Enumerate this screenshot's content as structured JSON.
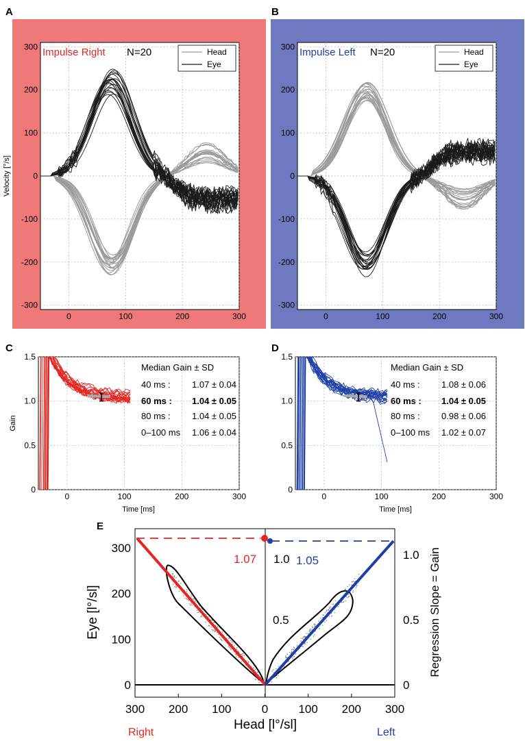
{
  "figure": {
    "panel_labels": [
      "A",
      "B",
      "C",
      "D",
      "E"
    ],
    "colors": {
      "right": "#e52521",
      "left": "#1f3fa8",
      "bgA": "#ef7878",
      "bgB": "#6f79bf",
      "head": "#9a9a9a",
      "eye": "#1a1a1a"
    }
  },
  "chart_data": [
    {
      "id": "A",
      "type": "line",
      "title": "Impulse Right",
      "count_label": "N=20",
      "ylabel": "Velocity [°/s]",
      "xlabel": "",
      "xlim": [
        -50,
        300
      ],
      "ylim": [
        -310,
        310
      ],
      "xticks": [
        0,
        100,
        200,
        300
      ],
      "yticks": [
        -300,
        -200,
        -100,
        0,
        100,
        200,
        300
      ],
      "grid": true,
      "legend": [
        "Head",
        "Eye"
      ],
      "legend_position": "top-right",
      "series": [
        {
          "name": "Head",
          "peak_velocity": -200,
          "peak_time_ms": 75,
          "trace_count": 20
        },
        {
          "name": "Eye",
          "peak_velocity": 210,
          "peak_time_ms": 75,
          "trace_count": 20
        }
      ]
    },
    {
      "id": "B",
      "type": "line",
      "title": "Impulse Left",
      "count_label": "N=20",
      "ylabel": "",
      "xlabel": "",
      "xlim": [
        -50,
        300
      ],
      "ylim": [
        -310,
        310
      ],
      "xticks": [
        0,
        100,
        200,
        300
      ],
      "yticks": [
        -300,
        -200,
        -100,
        0,
        100,
        200,
        300
      ],
      "grid": true,
      "legend": [
        "Head",
        "Eye"
      ],
      "legend_position": "top-right",
      "series": [
        {
          "name": "Head",
          "peak_velocity": 190,
          "peak_time_ms": 70,
          "trace_count": 20
        },
        {
          "name": "Eye",
          "peak_velocity": -195,
          "peak_time_ms": 70,
          "trace_count": 20
        }
      ]
    },
    {
      "id": "C",
      "type": "line",
      "ylabel": "Gain",
      "xlabel": "Time [ms]",
      "xlim": [
        -50,
        300
      ],
      "ylim": [
        0,
        1.5
      ],
      "xticks": [
        0,
        100,
        200,
        300
      ],
      "yticks": [
        0,
        0.5,
        1.0,
        1.5
      ],
      "grid": true,
      "table_header": "Median Gain ± SD",
      "rows": [
        {
          "label": "40 ms :",
          "value": "1.07 ± 0.04",
          "bold": false
        },
        {
          "label": "60 ms :",
          "value": "1.04 ± 0.05",
          "bold": true
        },
        {
          "label": "80 ms :",
          "value": "1.04 ± 0.05",
          "bold": false
        },
        {
          "label": "0–100 ms",
          "value": "1.06 ± 0.04",
          "bold": false
        }
      ]
    },
    {
      "id": "D",
      "type": "line",
      "ylabel": "",
      "xlabel": "Time [ms]",
      "xlim": [
        -50,
        300
      ],
      "ylim": [
        0,
        1.5
      ],
      "xticks": [
        0,
        100,
        200,
        300
      ],
      "yticks": [
        0,
        0.5,
        1.0,
        1.5
      ],
      "grid": true,
      "table_header": "Median Gain ± SD",
      "rows": [
        {
          "label": "40 ms :",
          "value": "1.08 ± 0.06",
          "bold": false
        },
        {
          "label": "60 ms :",
          "value": "1.04 ± 0.05",
          "bold": true
        },
        {
          "label": "80 ms :",
          "value": "0.98 ± 0.06",
          "bold": false
        },
        {
          "label": "0–100 ms",
          "value": "1.02 ± 0.07",
          "bold": false
        }
      ]
    },
    {
      "id": "E",
      "type": "scatter",
      "xlabel": "Head [l°/sl]",
      "ylabel": "Eye [l°/sl]",
      "ylabel_right": "Regression Slope = Gain",
      "xticks": [
        "300",
        "200",
        "100",
        "0",
        "100",
        "200",
        "300"
      ],
      "yticks": [
        0,
        100,
        200,
        300
      ],
      "yticks_right": [
        "0",
        "0.5",
        "1.0"
      ],
      "right_label": "Right",
      "left_label": "Left",
      "slope_right": 1.07,
      "slope_left": 1.05,
      "slope_right_label": "1.07",
      "slope_left_label": "1.05",
      "slope_axis_label": "1.0"
    }
  ]
}
